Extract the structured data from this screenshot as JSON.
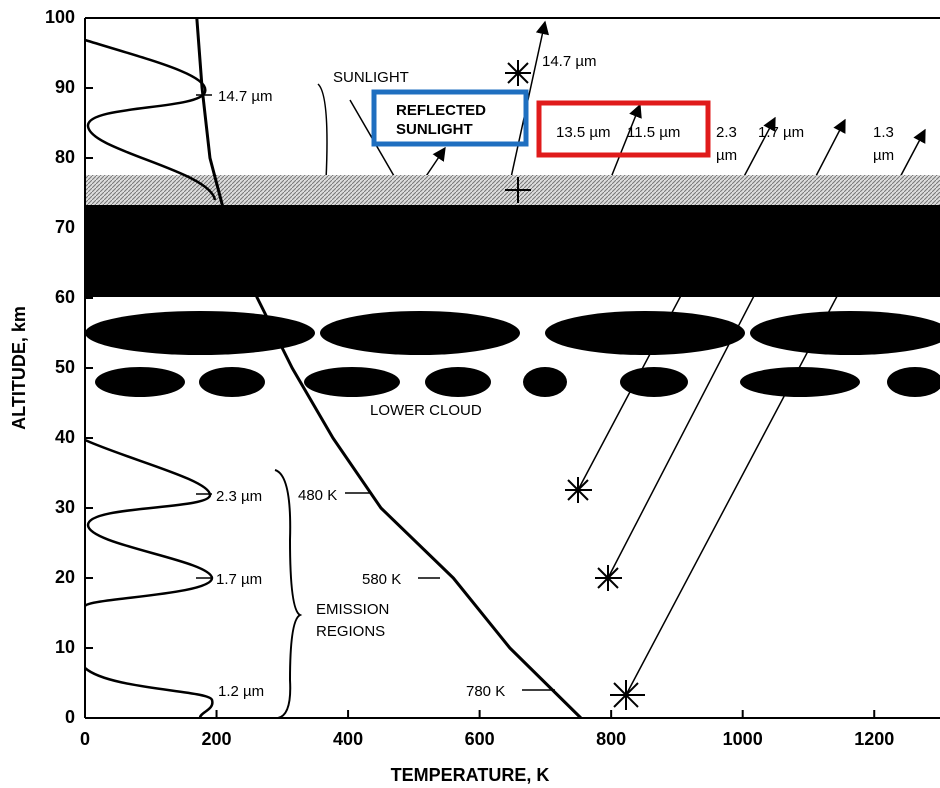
{
  "chart_data": {
    "type": "line",
    "xlabel": "TEMPERATURE, K",
    "ylabel": "ALTITUDE, km",
    "x": [
      754,
      646,
      560,
      450,
      377,
      315,
      262,
      218,
      190,
      178,
      170
    ],
    "values": [
      0,
      10,
      20,
      30,
      40,
      50,
      60,
      70,
      80,
      90,
      100
    ],
    "color": "#000000",
    "xlim": [
      0,
      1300
    ],
    "ylim": [
      0,
      100
    ],
    "xticks": [
      0,
      200,
      400,
      600,
      800,
      1000,
      1200
    ],
    "yticks": [
      0,
      10,
      20,
      30,
      40,
      50,
      60,
      70,
      80,
      90,
      100
    ],
    "annotations": [
      [
        "14.7 µm"
      ],
      [
        "SUNLIGHT"
      ],
      [
        "REFLECTED",
        "SUNLIGHT"
      ],
      [
        "14.7 µm"
      ],
      [
        "13.5 µm"
      ],
      [
        "11.5 µm"
      ],
      [
        "2.3",
        "µm"
      ],
      [
        "1.7 µm"
      ],
      [
        "1.3",
        "µm"
      ],
      [
        "LOWER CLOUD"
      ],
      [
        "2.3 µm"
      ],
      [
        "1.7 µm"
      ],
      [
        "1.2 µm"
      ],
      [
        "EMISSION",
        "REGIONS"
      ],
      [
        "480 K"
      ],
      [
        "580 K"
      ],
      [
        "780 K"
      ]
    ]
  }
}
